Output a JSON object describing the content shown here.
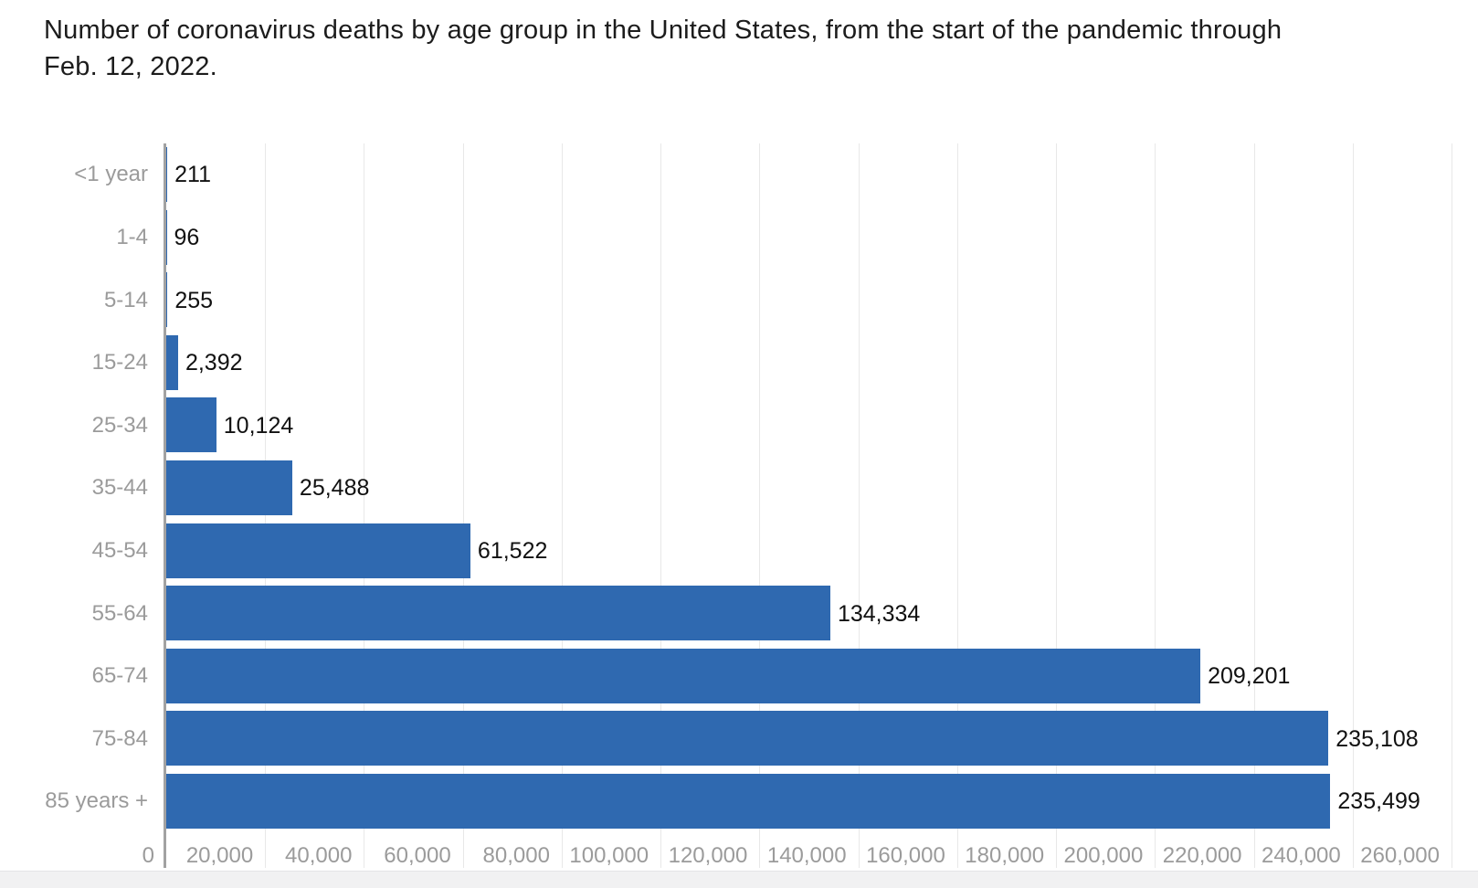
{
  "page": {
    "background": "#ffffff",
    "title_lines": [
      "Number of coronavirus deaths by age group in the United States, from the start of the pandemic through",
      "Feb. 12, 2022."
    ]
  },
  "chart_data": {
    "type": "bar",
    "orientation": "horizontal",
    "title": "Number of coronavirus deaths by age group in the United States, from the start of the pandemic through Feb. 12, 2022.",
    "xlabel": "",
    "ylabel": "",
    "categories": [
      "<1 year",
      "1-4",
      "5-14",
      "15-24",
      "25-34",
      "35-44",
      "45-54",
      "55-64",
      "65-74",
      "75-84",
      "85 years +"
    ],
    "values": [
      211,
      96,
      255,
      2392,
      10124,
      25488,
      61522,
      134334,
      209201,
      235108,
      235499
    ],
    "value_labels": [
      "211",
      "96",
      "255",
      "2,392",
      "10,124",
      "25,488",
      "61,522",
      "134,334",
      "209,201",
      "235,108",
      "235,499"
    ],
    "xlim": [
      0,
      260000
    ],
    "x_tick_values": [
      0,
      20000,
      40000,
      60000,
      80000,
      100000,
      120000,
      140000,
      160000,
      180000,
      200000,
      220000,
      240000,
      260000
    ],
    "x_tick_labels": [
      "0",
      "20,000",
      "40,000",
      "60,000",
      "80,000",
      "100,000",
      "120,000",
      "140,000",
      "160,000",
      "180,000",
      "200,000",
      "220,000",
      "240,000",
      "260,000"
    ],
    "grid": true,
    "legend": "none",
    "colors": {
      "bar": "#2f69b0",
      "axis_line": "#a2a2a2",
      "gridline": "#e8e8e8",
      "tick_label": "#9b9b9b",
      "category_label": "#9b9b9b",
      "value_label": "#111111",
      "title": "#1c1c1c",
      "page_background": "#ffffff",
      "bottom_strip": "#f1f1f2"
    }
  }
}
